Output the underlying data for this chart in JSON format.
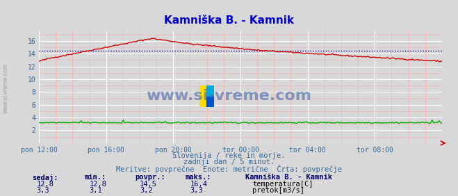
{
  "title": "Kamniška B. - Kamnik",
  "title_color": "#0000cc",
  "bg_color": "#d8d8d8",
  "grid_color_major": "#ffffff",
  "grid_color_minor": "#ffaaaa",
  "x_labels": [
    "pon 12:00",
    "pon 16:00",
    "pon 20:00",
    "tor 00:00",
    "tor 04:00",
    "tor 08:00"
  ],
  "x_ticks_norm": [
    0.0,
    0.1667,
    0.3333,
    0.5,
    0.6667,
    0.8333
  ],
  "y_ticks": [
    0,
    2,
    4,
    6,
    8,
    10,
    12,
    14,
    16
  ],
  "ylim": [
    0,
    17.5
  ],
  "xlim": [
    0,
    1
  ],
  "temp_avg": 14.5,
  "temp_color": "#cc0000",
  "flow_color": "#00aa00",
  "avg_line_color": "#000088",
  "watermark_text": "www.si-vreme.com",
  "watermark_color": "#4466aa",
  "subtitle1": "Slovenija / reke in morje.",
  "subtitle2": "zadnji dan / 5 minut.",
  "subtitle3": "Meritve: povprečne  Enote: metrične  Črta: povprečje",
  "subtitle_color": "#336699",
  "legend_title": "Kamniška B. - Kamnik",
  "legend_title_color": "#000066",
  "legend_items": [
    "temperatura[C]",
    "pretok[m3/s]"
  ],
  "legend_colors": [
    "#cc0000",
    "#00aa00"
  ],
  "table_headers": [
    "sedaj:",
    "min.:",
    "povpr.:",
    "maks.:"
  ],
  "table_temp": [
    "12,8",
    "12,8",
    "14,5",
    "16,4"
  ],
  "table_flow": [
    "3,3",
    "3,1",
    "3,2",
    "3,3"
  ],
  "table_color": "#000066",
  "n_points": 288
}
